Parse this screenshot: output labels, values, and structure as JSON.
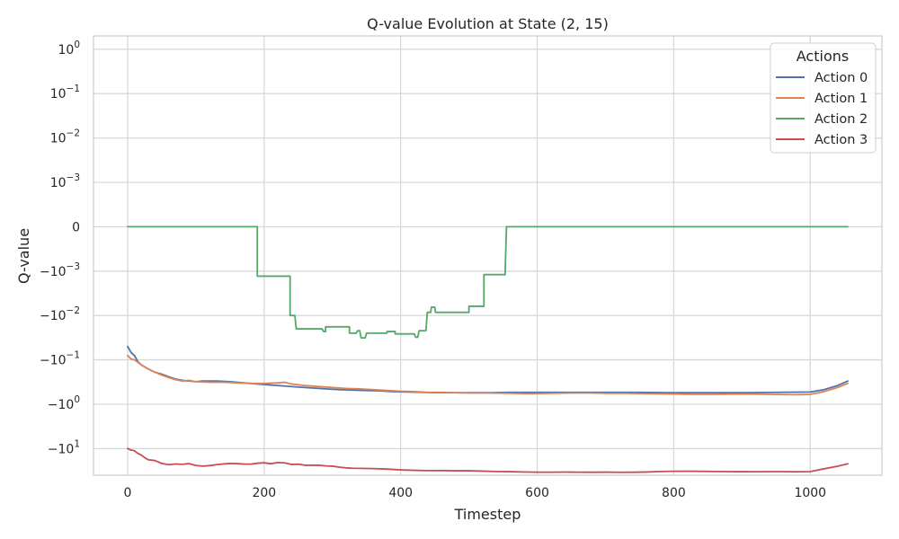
{
  "chart_data": {
    "type": "line",
    "title": "Q-value Evolution at State (2, 15)",
    "xlabel": "Timestep",
    "ylabel": "Q-value",
    "xlim": [
      -50,
      1105
    ],
    "yscale": "symlog",
    "symlog_linthresh": 0.001,
    "ylim_label": "approx -40 to 2",
    "grid": true,
    "x_ticks": [
      0,
      200,
      400,
      600,
      800,
      1000
    ],
    "x_tick_labels": [
      "0",
      "200",
      "400",
      "600",
      "800",
      "1000"
    ],
    "y_ticks": [
      {
        "value": 1,
        "base": "10",
        "exp": "0"
      },
      {
        "value": 0.1,
        "base": "10",
        "exp": "−1"
      },
      {
        "value": 0.01,
        "base": "10",
        "exp": "−2"
      },
      {
        "value": 0.001,
        "base": "10",
        "exp": "−3"
      },
      {
        "value": 0,
        "base": "0",
        "exp": ""
      },
      {
        "value": -0.001,
        "base": "−10",
        "exp": "−3"
      },
      {
        "value": -0.01,
        "base": "−10",
        "exp": "−2"
      },
      {
        "value": -0.1,
        "base": "−10",
        "exp": "−1"
      },
      {
        "value": -1,
        "base": "−10",
        "exp": "0"
      },
      {
        "value": -10,
        "base": "−10",
        "exp": "1"
      }
    ],
    "legend": {
      "title": "Actions",
      "position": "upper right"
    },
    "series": [
      {
        "name": "Action 0",
        "color": "#4c72b0",
        "points": [
          [
            0,
            -0.05
          ],
          [
            5,
            -0.068
          ],
          [
            10,
            -0.08
          ],
          [
            15,
            -0.11
          ],
          [
            20,
            -0.13
          ],
          [
            30,
            -0.16
          ],
          [
            40,
            -0.19
          ],
          [
            50,
            -0.21
          ],
          [
            60,
            -0.24
          ],
          [
            70,
            -0.27
          ],
          [
            80,
            -0.29
          ],
          [
            90,
            -0.3
          ],
          [
            100,
            -0.31
          ],
          [
            110,
            -0.3
          ],
          [
            130,
            -0.3
          ],
          [
            150,
            -0.31
          ],
          [
            170,
            -0.33
          ],
          [
            190,
            -0.35
          ],
          [
            210,
            -0.37
          ],
          [
            230,
            -0.39
          ],
          [
            250,
            -0.41
          ],
          [
            270,
            -0.43
          ],
          [
            290,
            -0.45
          ],
          [
            310,
            -0.47
          ],
          [
            330,
            -0.48
          ],
          [
            350,
            -0.49
          ],
          [
            370,
            -0.5
          ],
          [
            390,
            -0.52
          ],
          [
            410,
            -0.53
          ],
          [
            430,
            -0.54
          ],
          [
            450,
            -0.55
          ],
          [
            470,
            -0.55
          ],
          [
            490,
            -0.55
          ],
          [
            510,
            -0.55
          ],
          [
            530,
            -0.55
          ],
          [
            560,
            -0.54
          ],
          [
            600,
            -0.54
          ],
          [
            650,
            -0.54
          ],
          [
            700,
            -0.54
          ],
          [
            750,
            -0.54
          ],
          [
            800,
            -0.55
          ],
          [
            850,
            -0.55
          ],
          [
            900,
            -0.55
          ],
          [
            950,
            -0.54
          ],
          [
            1000,
            -0.53
          ],
          [
            1020,
            -0.47
          ],
          [
            1040,
            -0.38
          ],
          [
            1055,
            -0.3
          ]
        ]
      },
      {
        "name": "Action 1",
        "color": "#dd8452",
        "points": [
          [
            0,
            -0.08
          ],
          [
            5,
            -0.095
          ],
          [
            10,
            -0.1
          ],
          [
            20,
            -0.13
          ],
          [
            30,
            -0.16
          ],
          [
            40,
            -0.19
          ],
          [
            50,
            -0.22
          ],
          [
            60,
            -0.25
          ],
          [
            70,
            -0.28
          ],
          [
            80,
            -0.3
          ],
          [
            90,
            -0.29
          ],
          [
            100,
            -0.31
          ],
          [
            120,
            -0.32
          ],
          [
            140,
            -0.32
          ],
          [
            160,
            -0.33
          ],
          [
            180,
            -0.34
          ],
          [
            200,
            -0.34
          ],
          [
            220,
            -0.33
          ],
          [
            230,
            -0.32
          ],
          [
            240,
            -0.35
          ],
          [
            260,
            -0.38
          ],
          [
            280,
            -0.4
          ],
          [
            300,
            -0.42
          ],
          [
            320,
            -0.44
          ],
          [
            340,
            -0.45
          ],
          [
            360,
            -0.47
          ],
          [
            380,
            -0.49
          ],
          [
            400,
            -0.51
          ],
          [
            420,
            -0.52
          ],
          [
            440,
            -0.54
          ],
          [
            460,
            -0.54
          ],
          [
            480,
            -0.55
          ],
          [
            500,
            -0.56
          ],
          [
            530,
            -0.56
          ],
          [
            560,
            -0.57
          ],
          [
            590,
            -0.58
          ],
          [
            620,
            -0.57
          ],
          [
            650,
            -0.56
          ],
          [
            680,
            -0.56
          ],
          [
            700,
            -0.57
          ],
          [
            730,
            -0.57
          ],
          [
            760,
            -0.58
          ],
          [
            800,
            -0.59
          ],
          [
            830,
            -0.6
          ],
          [
            860,
            -0.6
          ],
          [
            900,
            -0.59
          ],
          [
            940,
            -0.6
          ],
          [
            980,
            -0.61
          ],
          [
            1000,
            -0.6
          ],
          [
            1020,
            -0.52
          ],
          [
            1040,
            -0.42
          ],
          [
            1055,
            -0.34
          ]
        ]
      },
      {
        "name": "Action 2",
        "color": "#55a868",
        "points": [
          [
            0,
            0
          ],
          [
            190,
            0
          ],
          [
            190,
            -0.0013
          ],
          [
            200,
            -0.0013
          ],
          [
            238,
            -0.0013
          ],
          [
            238,
            -0.01
          ],
          [
            245,
            -0.01
          ],
          [
            247,
            -0.02
          ],
          [
            285,
            -0.02
          ],
          [
            287,
            -0.023
          ],
          [
            290,
            -0.023
          ],
          [
            290,
            -0.018
          ],
          [
            325,
            -0.018
          ],
          [
            325,
            -0.025
          ],
          [
            335,
            -0.025
          ],
          [
            337,
            -0.022
          ],
          [
            340,
            -0.022
          ],
          [
            342,
            -0.032
          ],
          [
            348,
            -0.032
          ],
          [
            350,
            -0.025
          ],
          [
            380,
            -0.025
          ],
          [
            380,
            -0.023
          ],
          [
            392,
            -0.023
          ],
          [
            392,
            -0.026
          ],
          [
            420,
            -0.026
          ],
          [
            422,
            -0.031
          ],
          [
            425,
            -0.031
          ],
          [
            427,
            -0.022
          ],
          [
            437,
            -0.022
          ],
          [
            439,
            -0.0085
          ],
          [
            444,
            -0.0085
          ],
          [
            445,
            -0.0065
          ],
          [
            450,
            -0.0065
          ],
          [
            451,
            -0.0085
          ],
          [
            500,
            -0.0085
          ],
          [
            500,
            -0.0062
          ],
          [
            522,
            -0.0062
          ],
          [
            522,
            -0.0012
          ],
          [
            553,
            -0.0012
          ],
          [
            555,
            0
          ],
          [
            1055,
            0
          ]
        ]
      },
      {
        "name": "Action 3",
        "color": "#c44e52",
        "points": [
          [
            0,
            -10
          ],
          [
            5,
            -10.8
          ],
          [
            10,
            -11.2
          ],
          [
            15,
            -12.8
          ],
          [
            20,
            -14
          ],
          [
            25,
            -16
          ],
          [
            30,
            -17.8
          ],
          [
            40,
            -18.6
          ],
          [
            50,
            -21.6
          ],
          [
            60,
            -23
          ],
          [
            70,
            -22.2
          ],
          [
            80,
            -22.6
          ],
          [
            90,
            -21.8
          ],
          [
            100,
            -24.0
          ],
          [
            110,
            -24.8
          ],
          [
            120,
            -24.2
          ],
          [
            130,
            -23.0
          ],
          [
            140,
            -22.2
          ],
          [
            150,
            -21.6
          ],
          [
            160,
            -21.8
          ],
          [
            170,
            -22.3
          ],
          [
            180,
            -22.5
          ],
          [
            190,
            -21.4
          ],
          [
            200,
            -20.9
          ],
          [
            210,
            -21.9
          ],
          [
            220,
            -20.6
          ],
          [
            230,
            -21.0
          ],
          [
            240,
            -22.8
          ],
          [
            250,
            -22.5
          ],
          [
            260,
            -23.7
          ],
          [
            270,
            -23.8
          ],
          [
            280,
            -23.7
          ],
          [
            290,
            -24.5
          ],
          [
            300,
            -24.9
          ],
          [
            310,
            -26.2
          ],
          [
            320,
            -27.2
          ],
          [
            330,
            -27.7
          ],
          [
            340,
            -27.9
          ],
          [
            360,
            -28.2
          ],
          [
            380,
            -29.0
          ],
          [
            400,
            -30.2
          ],
          [
            420,
            -30.9
          ],
          [
            440,
            -31.4
          ],
          [
            460,
            -31.2
          ],
          [
            480,
            -31.6
          ],
          [
            500,
            -31.5
          ],
          [
            520,
            -32.2
          ],
          [
            540,
            -32.8
          ],
          [
            560,
            -33.1
          ],
          [
            580,
            -33.6
          ],
          [
            600,
            -34.0
          ],
          [
            620,
            -34.0
          ],
          [
            640,
            -33.8
          ],
          [
            660,
            -34.0
          ],
          [
            680,
            -34.1
          ],
          [
            700,
            -33.9
          ],
          [
            720,
            -34.2
          ],
          [
            740,
            -34.1
          ],
          [
            760,
            -33.7
          ],
          [
            780,
            -32.9
          ],
          [
            800,
            -32.5
          ],
          [
            820,
            -32.4
          ],
          [
            840,
            -32.6
          ],
          [
            860,
            -32.8
          ],
          [
            880,
            -33.0
          ],
          [
            900,
            -33.1
          ],
          [
            920,
            -33.2
          ],
          [
            940,
            -33.0
          ],
          [
            960,
            -33.0
          ],
          [
            980,
            -33.3
          ],
          [
            1000,
            -33.0
          ],
          [
            1020,
            -28.5
          ],
          [
            1040,
            -25
          ],
          [
            1055,
            -22
          ]
        ]
      }
    ]
  }
}
